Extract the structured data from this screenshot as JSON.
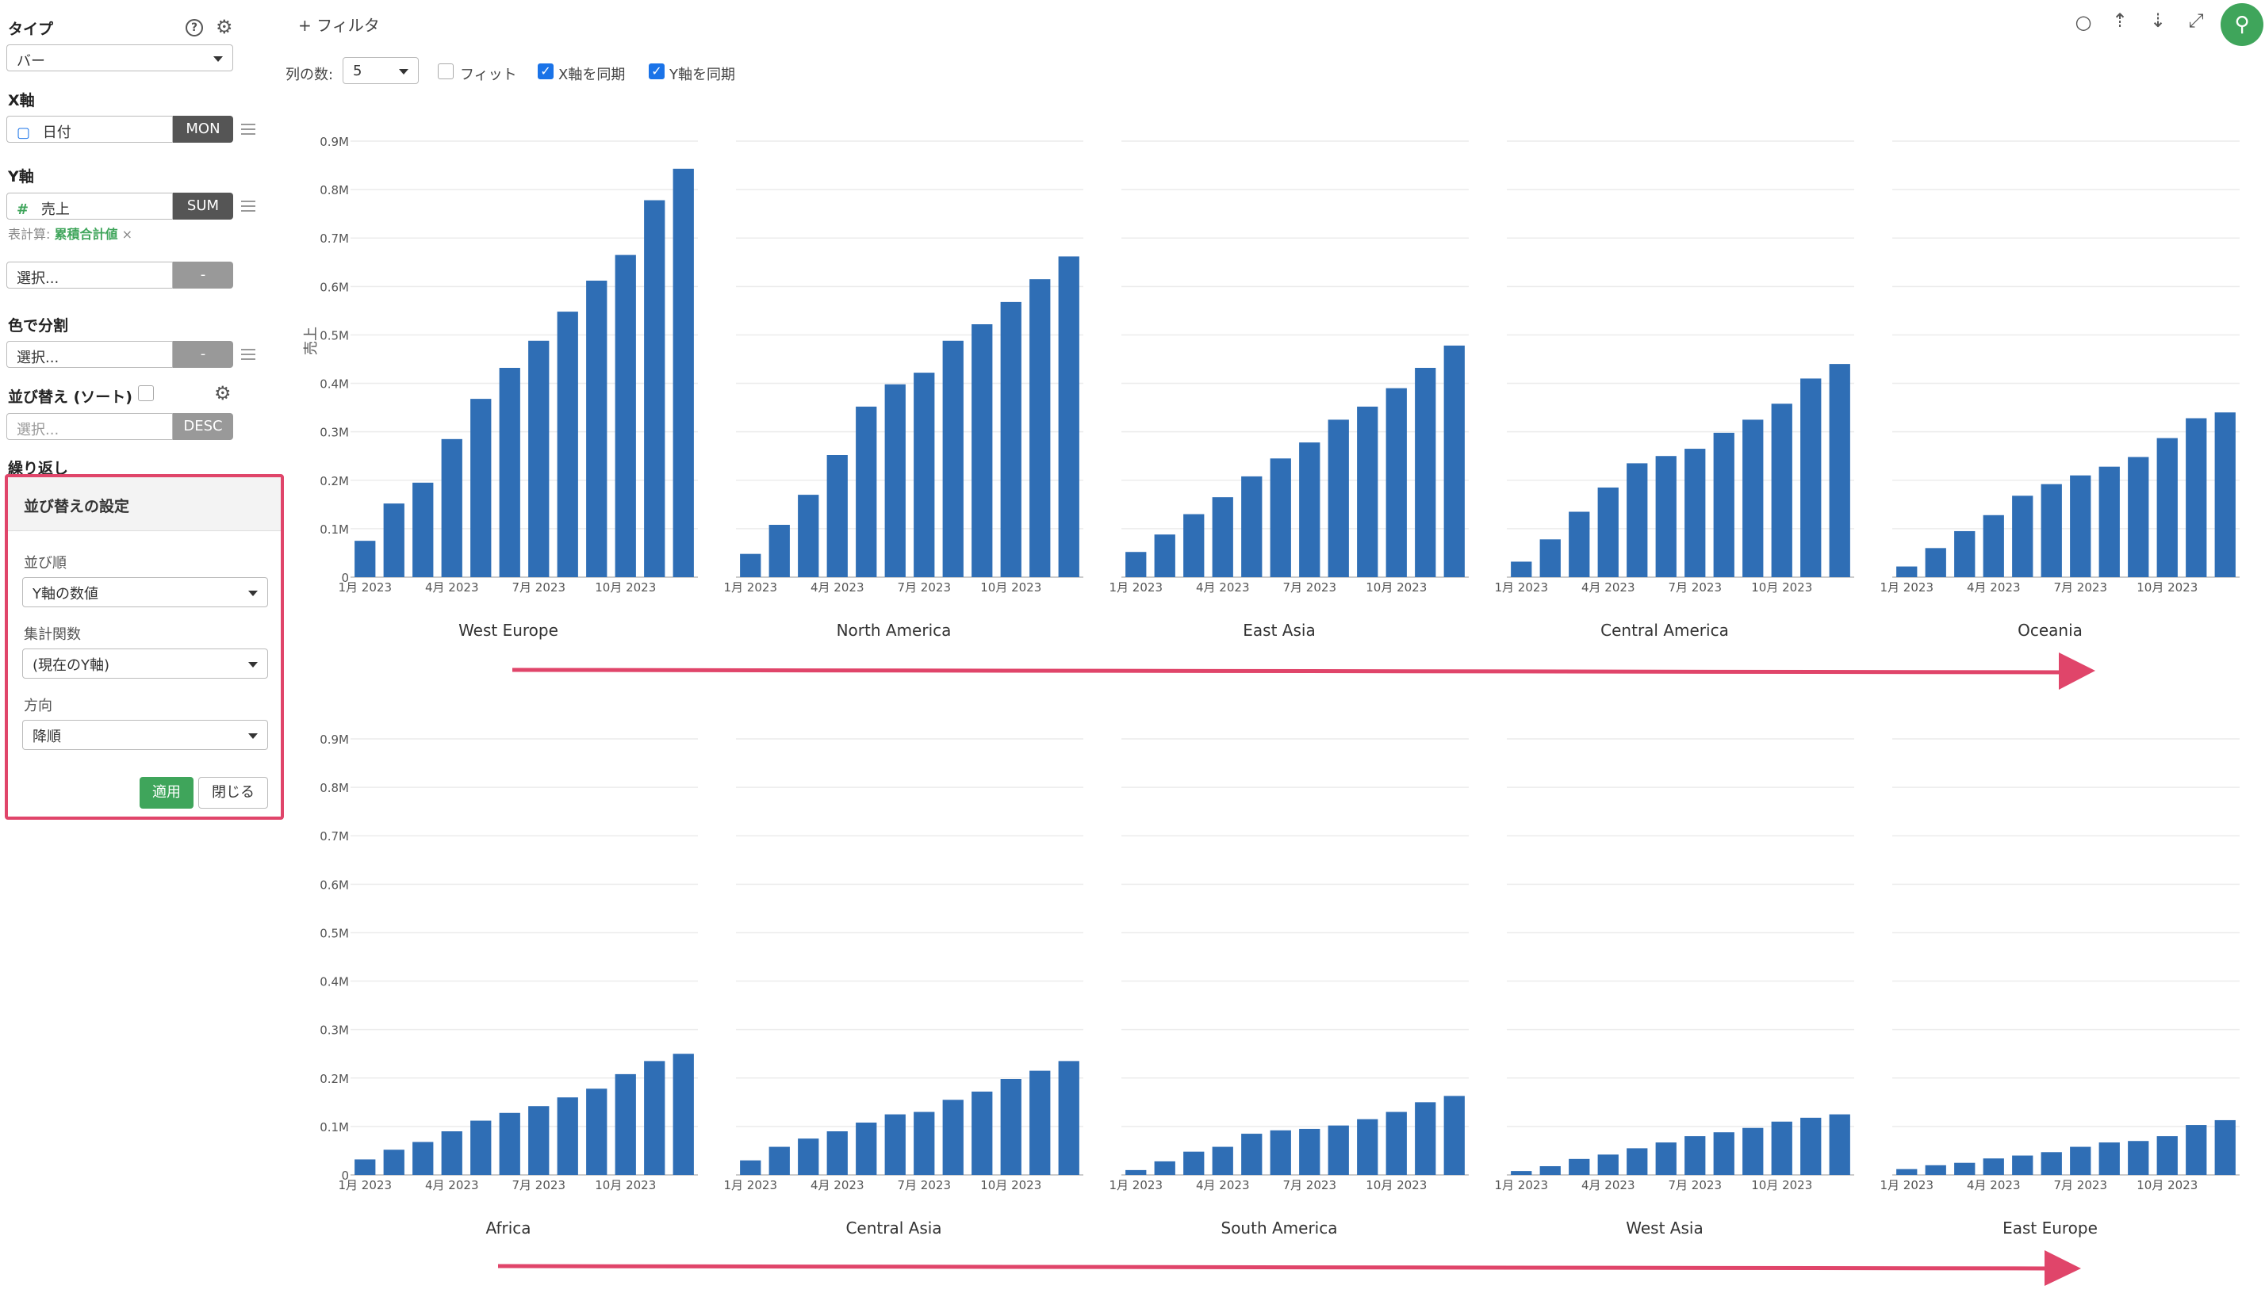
{
  "sidebar": {
    "type_label": "タイプ",
    "type_value": "バー",
    "x_axis_label": "X軸",
    "x_field": "日付",
    "x_agg": "MON",
    "y_axis_label": "Y軸",
    "y_field": "売上",
    "y_agg": "SUM",
    "table_calc_prefix": "表計算:",
    "table_calc_value": "累積合計値",
    "table_calc_remove": "×",
    "extra_select_placeholder": "選択...",
    "extra_select_pill": "-",
    "color_split_label": "色で分割",
    "color_select_placeholder": "選択...",
    "color_select_pill": "-",
    "sort_label": "並び替え (ソート)",
    "sort_select_placeholder": "選択...",
    "sort_pill": "DESC",
    "repeat_label": "繰り返し"
  },
  "sort_popup": {
    "title": "並び替えの設定",
    "order_label": "並び順",
    "order_value": "Y軸の数値",
    "agg_label": "集計関数",
    "agg_value": "(現在のY軸)",
    "direction_label": "方向",
    "direction_value": "降順",
    "apply_button": "適用",
    "close_button": "閉じる"
  },
  "toolbar": {
    "filter_label": "+ フィルタ",
    "columns_label": "列の数:",
    "columns_value": "5",
    "fit_label": "フィット",
    "fit_checked": false,
    "sync_x_label": "X軸を同期",
    "sync_x_checked": true,
    "sync_y_label": "Y軸を同期",
    "sync_y_checked": true,
    "icons": [
      "comment-icon",
      "upload-icon",
      "download-icon",
      "expand-icon",
      "pin-icon"
    ]
  },
  "colors": {
    "bar": "#2f6eb5",
    "accent_green": "#3fa55b",
    "arrow_pink": "#e0456a"
  },
  "chart_data": {
    "type": "bar",
    "layout": "small-multiples",
    "ylabel": "売上",
    "ylim": [
      0,
      900000
    ],
    "y_ticks": [
      "0",
      "0.1M",
      "0.2M",
      "0.3M",
      "0.4M",
      "0.5M",
      "0.6M",
      "0.7M",
      "0.8M",
      "0.9M"
    ],
    "x_tick_labels": [
      "1月 2023",
      "4月 2023",
      "7月 2023",
      "10月 2023"
    ],
    "x_tick_indices": [
      0,
      3,
      6,
      9
    ],
    "grid": true,
    "panels": [
      {
        "name": "West Europe",
        "values": [
          75000,
          152000,
          195000,
          285000,
          368000,
          432000,
          488000,
          548000,
          612000,
          665000,
          778000,
          843000
        ]
      },
      {
        "name": "North America",
        "values": [
          48000,
          108000,
          170000,
          252000,
          352000,
          398000,
          422000,
          488000,
          522000,
          568000,
          615000,
          662000
        ]
      },
      {
        "name": "East Asia",
        "values": [
          52000,
          88000,
          130000,
          165000,
          208000,
          245000,
          278000,
          325000,
          352000,
          390000,
          432000,
          478000
        ]
      },
      {
        "name": "Central America",
        "values": [
          32000,
          78000,
          135000,
          185000,
          235000,
          250000,
          265000,
          298000,
          325000,
          358000,
          410000,
          440000
        ]
      },
      {
        "name": "Oceania",
        "values": [
          22000,
          60000,
          95000,
          128000,
          168000,
          192000,
          210000,
          228000,
          248000,
          287000,
          328000,
          340000
        ]
      },
      {
        "name": "Africa",
        "values": [
          32000,
          52000,
          68000,
          90000,
          112000,
          128000,
          142000,
          160000,
          178000,
          208000,
          235000,
          250000
        ]
      },
      {
        "name": "Central Asia",
        "values": [
          30000,
          58000,
          75000,
          90000,
          108000,
          125000,
          130000,
          155000,
          172000,
          198000,
          215000,
          235000
        ]
      },
      {
        "name": "South America",
        "values": [
          10000,
          28000,
          48000,
          58000,
          85000,
          92000,
          95000,
          102000,
          115000,
          130000,
          150000,
          163000
        ]
      },
      {
        "name": "West Asia",
        "values": [
          8000,
          18000,
          33000,
          42000,
          55000,
          67000,
          80000,
          88000,
          97000,
          110000,
          118000,
          125000
        ]
      },
      {
        "name": "East Europe",
        "values": [
          12000,
          20000,
          25000,
          34000,
          40000,
          47000,
          58000,
          67000,
          70000,
          80000,
          103000,
          113000
        ]
      }
    ]
  }
}
